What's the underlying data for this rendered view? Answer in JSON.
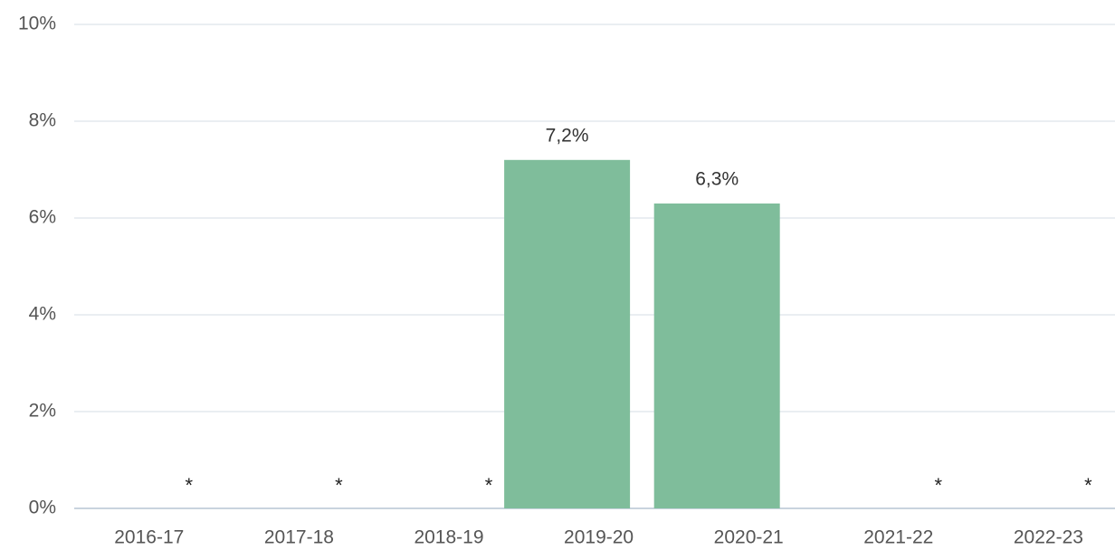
{
  "chart_data": {
    "type": "bar",
    "categories": [
      "2016-17",
      "2017-18",
      "2018-19",
      "2019-20",
      "2020-21",
      "2021-22",
      "2022-23"
    ],
    "values": [
      null,
      null,
      null,
      7.2,
      6.3,
      null,
      null
    ],
    "value_labels": [
      "*",
      "*",
      "*",
      "7,2%",
      "6,3%",
      "*",
      "*"
    ],
    "color": "#7fbd9b",
    "ylim": [
      0,
      10
    ],
    "yticks": [
      {
        "value": 0,
        "label": "0%"
      },
      {
        "value": 2,
        "label": "2%"
      },
      {
        "value": 4,
        "label": "4%"
      },
      {
        "value": 6,
        "label": "6%"
      },
      {
        "value": 8,
        "label": "8%"
      },
      {
        "value": 10,
        "label": "10%"
      }
    ],
    "grid": true
  }
}
